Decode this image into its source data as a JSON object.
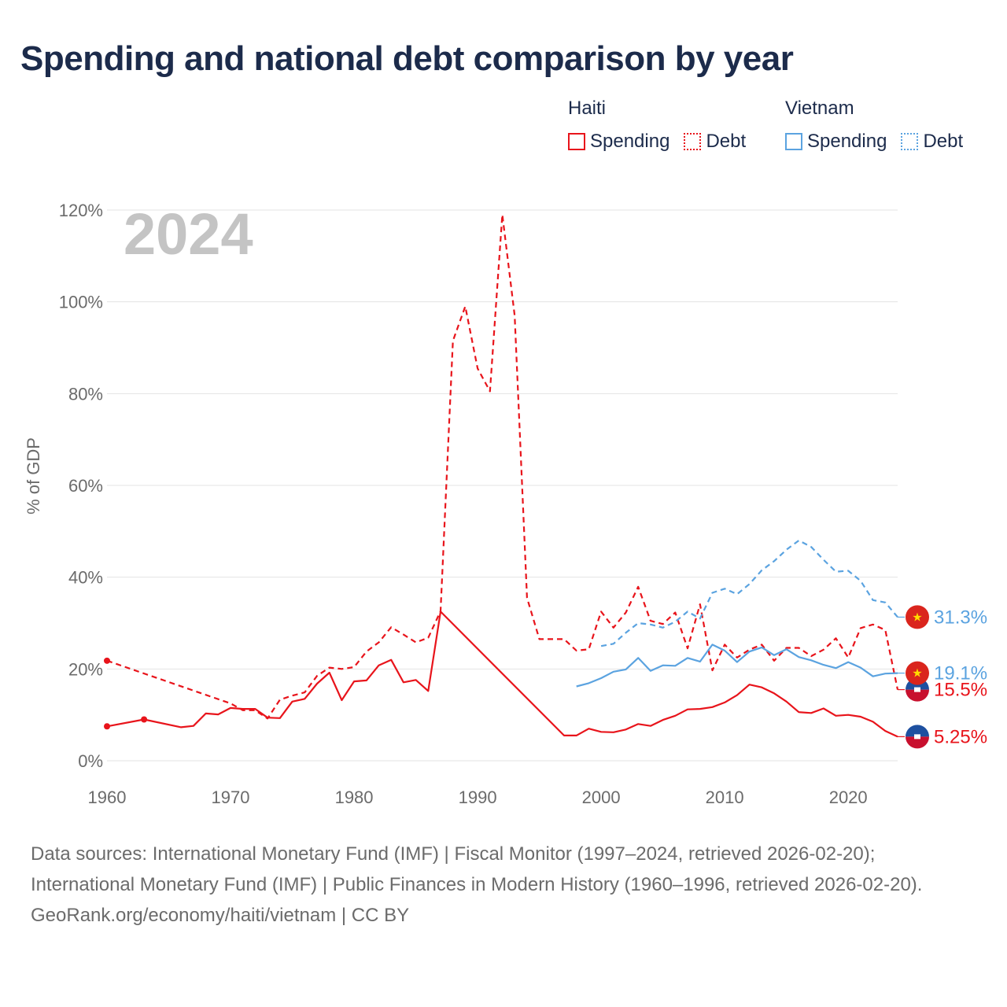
{
  "title": "Spending and national debt comparison by year",
  "legend": {
    "haiti": {
      "country": "Haiti",
      "spending": "Spending",
      "debt": "Debt",
      "color": "#e8141b"
    },
    "vietnam": {
      "country": "Vietnam",
      "spending": "Spending",
      "debt": "Debt",
      "color": "#5ba3e0"
    }
  },
  "footer": {
    "sources": "Data sources: International Monetary Fund (IMF) | Fiscal Monitor (1997–2024, retrieved 2026-02-20); International Monetary Fund (IMF) | Public Finances in Modern History (1960–1996, retrieved 2026-02-20).",
    "credit": "GeoRank.org/economy/haiti/vietnam | CC BY"
  },
  "chart_data": {
    "type": "line",
    "year_label": "2024",
    "ylabel": "% of GDP",
    "xlabel": "",
    "xlim": [
      1960,
      2024
    ],
    "ylim": [
      0,
      120
    ],
    "x_ticks": [
      1960,
      1970,
      1980,
      1990,
      2000,
      2010,
      2020
    ],
    "x_tick_labels": [
      "1960",
      "1970",
      "1980",
      "1990",
      "2000",
      "2010",
      "2020"
    ],
    "y_ticks": [
      0,
      20,
      40,
      60,
      80,
      100,
      120
    ],
    "y_tick_labels": [
      "0%",
      "20%",
      "40%",
      "60%",
      "80%",
      "100%",
      "120%"
    ],
    "grid": true,
    "series": [
      {
        "name": "Haiti Spending",
        "country": "Haiti",
        "metric": "Spending",
        "style": "solid",
        "color": "#e8141b",
        "points": [
          [
            1960,
            7.5
          ],
          [
            1963,
            9.0
          ],
          [
            1966,
            7.3
          ],
          [
            1967,
            7.6
          ],
          [
            1968,
            10.3
          ],
          [
            1969,
            10.1
          ],
          [
            1970,
            11.5
          ],
          [
            1971,
            11.3
          ],
          [
            1972,
            11.3
          ],
          [
            1973,
            9.4
          ],
          [
            1974,
            9.3
          ],
          [
            1975,
            12.9
          ],
          [
            1976,
            13.5
          ],
          [
            1977,
            16.8
          ],
          [
            1978,
            19.2
          ],
          [
            1979,
            13.2
          ],
          [
            1980,
            17.3
          ],
          [
            1981,
            17.5
          ],
          [
            1982,
            20.8
          ],
          [
            1983,
            22.0
          ],
          [
            1984,
            17.1
          ],
          [
            1985,
            17.6
          ],
          [
            1986,
            15.2
          ],
          [
            1987,
            32.5
          ],
          [
            1997,
            5.5
          ],
          [
            1998,
            5.5
          ],
          [
            1999,
            7.0
          ],
          [
            2000,
            6.3
          ],
          [
            2001,
            6.2
          ],
          [
            2002,
            6.8
          ],
          [
            2003,
            8.0
          ],
          [
            2004,
            7.6
          ],
          [
            2005,
            8.9
          ],
          [
            2006,
            9.8
          ],
          [
            2007,
            11.2
          ],
          [
            2008,
            11.3
          ],
          [
            2009,
            11.7
          ],
          [
            2010,
            12.7
          ],
          [
            2011,
            14.3
          ],
          [
            2012,
            16.6
          ],
          [
            2013,
            16.0
          ],
          [
            2014,
            14.7
          ],
          [
            2015,
            12.9
          ],
          [
            2016,
            10.6
          ],
          [
            2017,
            10.4
          ],
          [
            2018,
            11.4
          ],
          [
            2019,
            9.8
          ],
          [
            2020,
            10.0
          ],
          [
            2021,
            9.6
          ],
          [
            2022,
            8.5
          ],
          [
            2023,
            6.5
          ],
          [
            2024,
            5.25
          ]
        ],
        "markers": [
          1960,
          1963
        ],
        "end_value": 5.25,
        "end_label": "5.25%"
      },
      {
        "name": "Haiti Debt",
        "country": "Haiti",
        "metric": "Debt",
        "style": "dashed",
        "color": "#e8141b",
        "points": [
          [
            1960,
            21.8
          ],
          [
            1970,
            12.5
          ],
          [
            1971,
            11.0
          ],
          [
            1972,
            11.0
          ],
          [
            1973,
            9.2
          ],
          [
            1974,
            13.3
          ],
          [
            1975,
            14.2
          ],
          [
            1976,
            14.9
          ],
          [
            1977,
            18.5
          ],
          [
            1978,
            20.3
          ],
          [
            1979,
            20.0
          ],
          [
            1980,
            20.4
          ],
          [
            1981,
            23.8
          ],
          [
            1982,
            25.8
          ],
          [
            1983,
            29.1
          ],
          [
            1984,
            27.5
          ],
          [
            1985,
            25.8
          ],
          [
            1986,
            26.8
          ],
          [
            1987,
            32.6
          ],
          [
            1988,
            91.5
          ],
          [
            1989,
            99.0
          ],
          [
            1990,
            85.5
          ],
          [
            1991,
            80.5
          ],
          [
            1992,
            119.0
          ],
          [
            1993,
            97.0
          ],
          [
            1994,
            35.5
          ],
          [
            1995,
            26.5
          ],
          [
            1996,
            26.5
          ],
          [
            1997,
            26.5
          ],
          [
            1998,
            24.0
          ],
          [
            1999,
            24.3
          ],
          [
            2000,
            32.5
          ],
          [
            2001,
            29.0
          ],
          [
            2002,
            32.3
          ],
          [
            2003,
            37.9
          ],
          [
            2004,
            30.5
          ],
          [
            2005,
            29.8
          ],
          [
            2006,
            32.3
          ],
          [
            2007,
            24.5
          ],
          [
            2008,
            34.1
          ],
          [
            2009,
            19.7
          ],
          [
            2010,
            25.3
          ],
          [
            2011,
            22.5
          ],
          [
            2012,
            24.2
          ],
          [
            2013,
            25.3
          ],
          [
            2014,
            21.8
          ],
          [
            2015,
            24.6
          ],
          [
            2016,
            24.6
          ],
          [
            2017,
            22.8
          ],
          [
            2018,
            24.2
          ],
          [
            2019,
            26.7
          ],
          [
            2020,
            22.5
          ],
          [
            2021,
            28.9
          ],
          [
            2022,
            29.7
          ],
          [
            2023,
            28.5
          ],
          [
            2024,
            15.5
          ]
        ],
        "markers": [
          1960
        ],
        "end_value": 15.5,
        "end_label": "15.5%"
      },
      {
        "name": "Vietnam Spending",
        "country": "Vietnam",
        "metric": "Spending",
        "style": "solid",
        "color": "#5ba3e0",
        "points": [
          [
            1998,
            16.2
          ],
          [
            1999,
            16.9
          ],
          [
            2000,
            18.0
          ],
          [
            2001,
            19.4
          ],
          [
            2002,
            19.9
          ],
          [
            2003,
            22.4
          ],
          [
            2004,
            19.6
          ],
          [
            2005,
            20.8
          ],
          [
            2006,
            20.7
          ],
          [
            2007,
            22.4
          ],
          [
            2008,
            21.6
          ],
          [
            2009,
            25.3
          ],
          [
            2010,
            24.0
          ],
          [
            2011,
            21.5
          ],
          [
            2012,
            23.8
          ],
          [
            2013,
            24.7
          ],
          [
            2014,
            23.0
          ],
          [
            2015,
            24.3
          ],
          [
            2016,
            22.6
          ],
          [
            2017,
            21.9
          ],
          [
            2018,
            20.9
          ],
          [
            2019,
            20.2
          ],
          [
            2020,
            21.5
          ],
          [
            2021,
            20.3
          ],
          [
            2022,
            18.4
          ],
          [
            2023,
            19.0
          ],
          [
            2024,
            19.1
          ]
        ],
        "markers": [],
        "end_value": 19.1,
        "end_label": "19.1%"
      },
      {
        "name": "Vietnam Debt",
        "country": "Vietnam",
        "metric": "Debt",
        "style": "dashed",
        "color": "#5ba3e0",
        "points": [
          [
            2000,
            25.0
          ],
          [
            2001,
            25.5
          ],
          [
            2002,
            27.9
          ],
          [
            2003,
            30.0
          ],
          [
            2004,
            29.7
          ],
          [
            2005,
            29.0
          ],
          [
            2006,
            30.3
          ],
          [
            2007,
            32.5
          ],
          [
            2008,
            31.0
          ],
          [
            2009,
            36.6
          ],
          [
            2010,
            37.5
          ],
          [
            2011,
            36.3
          ],
          [
            2012,
            38.5
          ],
          [
            2013,
            41.5
          ],
          [
            2014,
            43.5
          ],
          [
            2015,
            46.0
          ],
          [
            2016,
            48.0
          ],
          [
            2017,
            46.6
          ],
          [
            2018,
            43.8
          ],
          [
            2019,
            41.2
          ],
          [
            2020,
            41.4
          ],
          [
            2021,
            39.2
          ],
          [
            2022,
            35.0
          ],
          [
            2023,
            34.5
          ],
          [
            2024,
            31.3
          ]
        ],
        "markers": [],
        "end_value": 31.3,
        "end_label": "31.3%"
      }
    ]
  }
}
